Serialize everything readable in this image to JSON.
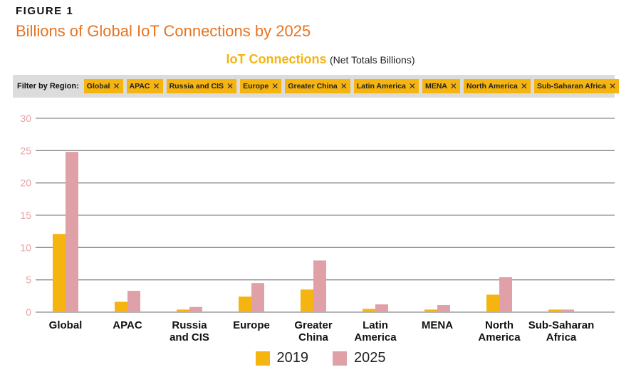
{
  "figure_label": "FIGURE 1",
  "figure_title": "Billions of Global IoT Connections by 2025",
  "filter": {
    "label": "Filter by Region:",
    "chips": [
      "Global",
      "APAC",
      "Russia and CIS",
      "Europe",
      "Greater China",
      "Latin America",
      "MENA",
      "North America",
      "Sub-Saharan Africa"
    ],
    "close_glyph": "✕"
  },
  "colors": {
    "accent_orange": "#e8731f",
    "series_2019": "#f5b40f",
    "series_2025": "#dfa0a8",
    "filter_bg": "#dcdcdc"
  },
  "chart_data": {
    "type": "bar",
    "title": "IoT Connections",
    "subtitle": "(Net Totals Billions)",
    "xlabel": "",
    "ylabel": "",
    "ylim": [
      0,
      30
    ],
    "yticks": [
      0,
      5,
      10,
      15,
      20,
      25,
      30
    ],
    "grid": true,
    "legend_position": "bottom-center",
    "categories": [
      [
        "Global"
      ],
      [
        "APAC"
      ],
      [
        "Russia",
        "and CIS"
      ],
      [
        "Europe"
      ],
      [
        "Greater",
        "China"
      ],
      [
        "Latin",
        "America"
      ],
      [
        "MENA"
      ],
      [
        "North",
        "America"
      ],
      [
        "Sub-Saharan",
        "Africa"
      ]
    ],
    "series": [
      {
        "name": "2019",
        "color": "#f5b40f",
        "values": [
          12.1,
          1.6,
          0.4,
          2.4,
          3.5,
          0.5,
          0.4,
          2.7,
          0.4
        ]
      },
      {
        "name": "2025",
        "color": "#dfa0a8",
        "values": [
          24.8,
          3.3,
          0.8,
          4.5,
          8.0,
          1.2,
          1.1,
          5.4,
          0.4
        ]
      }
    ]
  }
}
